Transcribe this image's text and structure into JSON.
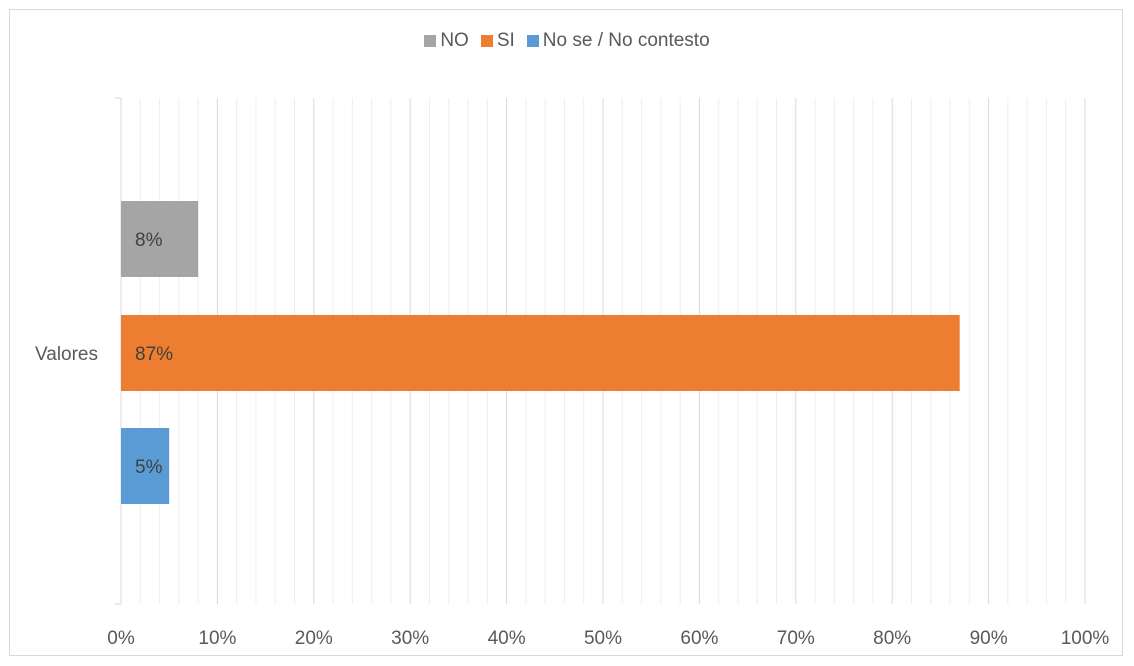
{
  "chart_data": {
    "type": "bar",
    "orientation": "horizontal",
    "categories": [
      "Valores"
    ],
    "series": [
      {
        "name": "NO",
        "values": [
          8
        ],
        "color": "#a5a5a5",
        "label": "8%"
      },
      {
        "name": "SI",
        "values": [
          87
        ],
        "color": "#ed7d31",
        "label": "87%"
      },
      {
        "name": "No se / No contesto",
        "values": [
          5
        ],
        "color": "#5b9bd5",
        "label": "5%"
      }
    ],
    "xlim": [
      0,
      100
    ],
    "xticks": [
      "0%",
      "10%",
      "20%",
      "30%",
      "40%",
      "50%",
      "60%",
      "70%",
      "80%",
      "90%",
      "100%"
    ],
    "grid": true,
    "legend_position": "top"
  }
}
